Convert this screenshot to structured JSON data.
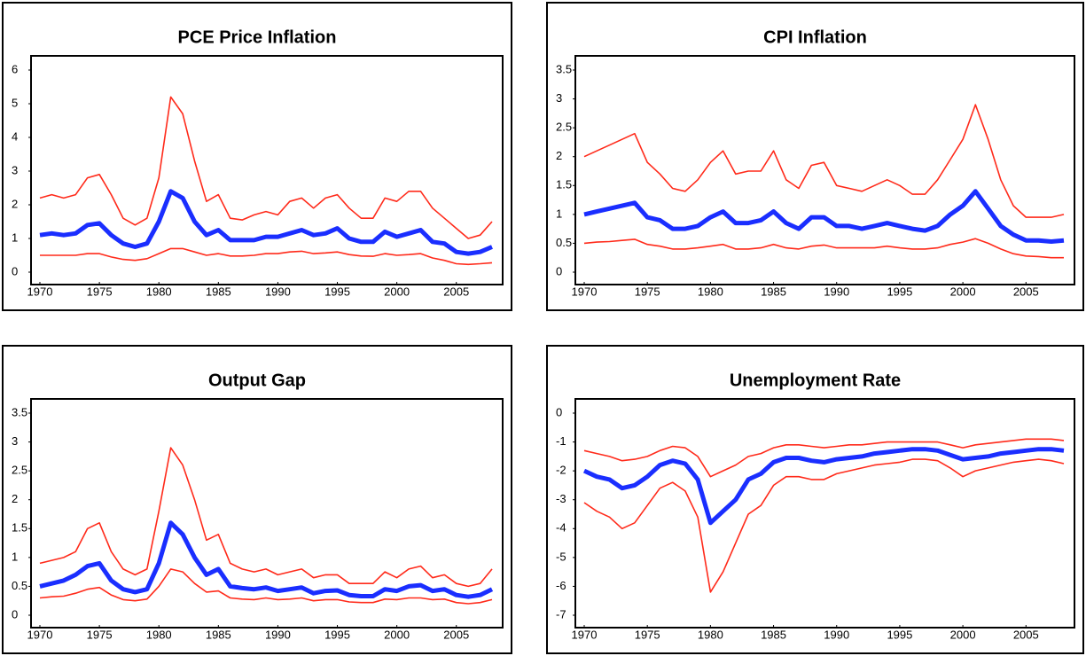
{
  "chart_data": [
    {
      "type": "line",
      "title": "PCE Price Inflation",
      "x": [
        1970,
        1971,
        1972,
        1973,
        1974,
        1975,
        1976,
        1977,
        1978,
        1979,
        1980,
        1981,
        1982,
        1983,
        1984,
        1985,
        1986,
        1987,
        1988,
        1989,
        1990,
        1991,
        1992,
        1993,
        1994,
        1995,
        1996,
        1997,
        1998,
        1999,
        2000,
        2001,
        2002,
        2003,
        2004,
        2005,
        2006,
        2007,
        2008
      ],
      "xlim": [
        1970,
        2008
      ],
      "xticks": [
        1970,
        1975,
        1980,
        1985,
        1990,
        1995,
        2000,
        2005
      ],
      "ylim": [
        0,
        6
      ],
      "yticks": [
        0,
        1,
        2,
        3,
        4,
        5,
        6
      ],
      "series": [
        {
          "color": "#ff2a1a",
          "values": [
            2.2,
            2.3,
            2.2,
            2.3,
            2.8,
            2.9,
            2.3,
            1.6,
            1.4,
            1.6,
            2.8,
            5.2,
            4.7,
            3.3,
            2.1,
            2.3,
            1.6,
            1.55,
            1.7,
            1.8,
            1.7,
            2.1,
            2.2,
            1.9,
            2.2,
            2.3,
            1.9,
            1.6,
            1.6,
            2.2,
            2.1,
            2.4,
            2.4,
            1.9,
            1.6,
            1.3,
            1.0,
            1.1,
            1.5
          ]
        },
        {
          "color": "#1a2eff",
          "values": [
            1.1,
            1.15,
            1.1,
            1.15,
            1.4,
            1.45,
            1.1,
            0.85,
            0.75,
            0.85,
            1.5,
            2.4,
            2.2,
            1.5,
            1.1,
            1.25,
            0.95,
            0.95,
            0.95,
            1.05,
            1.05,
            1.15,
            1.25,
            1.1,
            1.15,
            1.3,
            1.0,
            0.9,
            0.9,
            1.2,
            1.05,
            1.15,
            1.25,
            0.9,
            0.85,
            0.6,
            0.55,
            0.6,
            0.75
          ]
        },
        {
          "color": "#ff2a1a",
          "values": [
            0.5,
            0.5,
            0.5,
            0.5,
            0.55,
            0.55,
            0.45,
            0.38,
            0.35,
            0.4,
            0.55,
            0.7,
            0.7,
            0.6,
            0.5,
            0.55,
            0.48,
            0.48,
            0.5,
            0.55,
            0.55,
            0.6,
            0.62,
            0.55,
            0.57,
            0.6,
            0.52,
            0.48,
            0.47,
            0.55,
            0.5,
            0.52,
            0.55,
            0.42,
            0.35,
            0.25,
            0.23,
            0.25,
            0.28
          ]
        }
      ]
    },
    {
      "type": "line",
      "title": "CPI Inflation",
      "x": [
        1970,
        1971,
        1972,
        1973,
        1974,
        1975,
        1976,
        1977,
        1978,
        1979,
        1980,
        1981,
        1982,
        1983,
        1984,
        1985,
        1986,
        1987,
        1988,
        1989,
        1990,
        1991,
        1992,
        1993,
        1994,
        1995,
        1996,
        1997,
        1998,
        1999,
        2000,
        2001,
        2002,
        2003,
        2004,
        2005,
        2006,
        2007,
        2008
      ],
      "xlim": [
        1970,
        2008
      ],
      "xticks": [
        1970,
        1975,
        1980,
        1985,
        1990,
        1995,
        2000,
        2005
      ],
      "ylim": [
        0,
        3.5
      ],
      "yticks": [
        0,
        0.5,
        1,
        1.5,
        2,
        2.5,
        3,
        3.5
      ],
      "series": [
        {
          "color": "#ff2a1a",
          "values": [
            2.0,
            2.1,
            2.2,
            2.3,
            2.4,
            1.9,
            1.7,
            1.45,
            1.4,
            1.6,
            1.9,
            2.1,
            1.7,
            1.75,
            1.75,
            2.1,
            1.6,
            1.45,
            1.85,
            1.9,
            1.5,
            1.45,
            1.4,
            1.5,
            1.6,
            1.5,
            1.35,
            1.35,
            1.6,
            1.95,
            2.3,
            2.9,
            2.3,
            1.6,
            1.15,
            0.95,
            0.95,
            0.95,
            1.0
          ]
        },
        {
          "color": "#1a2eff",
          "values": [
            1.0,
            1.05,
            1.1,
            1.15,
            1.2,
            0.95,
            0.9,
            0.75,
            0.75,
            0.8,
            0.95,
            1.05,
            0.85,
            0.85,
            0.9,
            1.05,
            0.85,
            0.75,
            0.95,
            0.95,
            0.8,
            0.8,
            0.75,
            0.8,
            0.85,
            0.8,
            0.75,
            0.72,
            0.8,
            1.0,
            1.15,
            1.4,
            1.1,
            0.8,
            0.65,
            0.55,
            0.55,
            0.53,
            0.55
          ]
        },
        {
          "color": "#ff2a1a",
          "values": [
            0.5,
            0.52,
            0.53,
            0.55,
            0.57,
            0.48,
            0.45,
            0.4,
            0.4,
            0.42,
            0.45,
            0.48,
            0.4,
            0.4,
            0.42,
            0.48,
            0.42,
            0.4,
            0.45,
            0.47,
            0.42,
            0.42,
            0.42,
            0.42,
            0.45,
            0.42,
            0.4,
            0.4,
            0.42,
            0.48,
            0.52,
            0.58,
            0.5,
            0.4,
            0.32,
            0.28,
            0.27,
            0.25,
            0.25
          ]
        }
      ]
    },
    {
      "type": "line",
      "title": "Output Gap",
      "x": [
        1970,
        1971,
        1972,
        1973,
        1974,
        1975,
        1976,
        1977,
        1978,
        1979,
        1980,
        1981,
        1982,
        1983,
        1984,
        1985,
        1986,
        1987,
        1988,
        1989,
        1990,
        1991,
        1992,
        1993,
        1994,
        1995,
        1996,
        1997,
        1998,
        1999,
        2000,
        2001,
        2002,
        2003,
        2004,
        2005,
        2006,
        2007,
        2008
      ],
      "xlim": [
        1970,
        2008
      ],
      "xticks": [
        1970,
        1975,
        1980,
        1985,
        1990,
        1995,
        2000,
        2005
      ],
      "ylim": [
        0,
        3.5
      ],
      "yticks": [
        0,
        0.5,
        1,
        1.5,
        2,
        2.5,
        3,
        3.5
      ],
      "series": [
        {
          "color": "#ff2a1a",
          "values": [
            0.9,
            0.95,
            1.0,
            1.1,
            1.5,
            1.6,
            1.1,
            0.8,
            0.7,
            0.8,
            1.8,
            2.9,
            2.6,
            2.0,
            1.3,
            1.4,
            0.9,
            0.8,
            0.75,
            0.8,
            0.7,
            0.75,
            0.8,
            0.65,
            0.7,
            0.7,
            0.55,
            0.55,
            0.55,
            0.75,
            0.65,
            0.8,
            0.85,
            0.65,
            0.7,
            0.55,
            0.5,
            0.55,
            0.8
          ]
        },
        {
          "color": "#1a2eff",
          "values": [
            0.5,
            0.55,
            0.6,
            0.7,
            0.85,
            0.9,
            0.6,
            0.45,
            0.4,
            0.45,
            0.9,
            1.6,
            1.4,
            1.0,
            0.7,
            0.8,
            0.5,
            0.47,
            0.45,
            0.48,
            0.42,
            0.45,
            0.48,
            0.38,
            0.42,
            0.43,
            0.35,
            0.33,
            0.33,
            0.45,
            0.42,
            0.5,
            0.52,
            0.42,
            0.45,
            0.35,
            0.32,
            0.35,
            0.45
          ]
        },
        {
          "color": "#ff2a1a",
          "values": [
            0.3,
            0.32,
            0.33,
            0.38,
            0.45,
            0.48,
            0.35,
            0.27,
            0.25,
            0.28,
            0.5,
            0.8,
            0.75,
            0.55,
            0.4,
            0.42,
            0.3,
            0.28,
            0.27,
            0.3,
            0.27,
            0.28,
            0.3,
            0.25,
            0.27,
            0.27,
            0.23,
            0.22,
            0.22,
            0.28,
            0.27,
            0.3,
            0.3,
            0.27,
            0.28,
            0.22,
            0.2,
            0.22,
            0.27
          ]
        }
      ]
    },
    {
      "type": "line",
      "title": "Unemployment Rate",
      "x": [
        1970,
        1971,
        1972,
        1973,
        1974,
        1975,
        1976,
        1977,
        1978,
        1979,
        1980,
        1981,
        1982,
        1983,
        1984,
        1985,
        1986,
        1987,
        1988,
        1989,
        1990,
        1991,
        1992,
        1993,
        1994,
        1995,
        1996,
        1997,
        1998,
        1999,
        2000,
        2001,
        2002,
        2003,
        2004,
        2005,
        2006,
        2007,
        2008
      ],
      "xlim": [
        1970,
        2008
      ],
      "xticks": [
        1970,
        1975,
        1980,
        1985,
        1990,
        1995,
        2000,
        2005
      ],
      "ylim": [
        -7,
        0
      ],
      "yticks": [
        -7,
        -6,
        -5,
        -4,
        -3,
        -2,
        -1,
        0
      ],
      "series": [
        {
          "color": "#ff2a1a",
          "values": [
            -1.3,
            -1.4,
            -1.5,
            -1.65,
            -1.6,
            -1.5,
            -1.3,
            -1.15,
            -1.2,
            -1.5,
            -2.2,
            -2.0,
            -1.8,
            -1.5,
            -1.4,
            -1.2,
            -1.1,
            -1.1,
            -1.15,
            -1.2,
            -1.15,
            -1.1,
            -1.1,
            -1.05,
            -1.0,
            -1.0,
            -1.0,
            -1.0,
            -1.0,
            -1.1,
            -1.2,
            -1.1,
            -1.05,
            -1.0,
            -0.95,
            -0.9,
            -0.9,
            -0.9,
            -0.95
          ]
        },
        {
          "color": "#1a2eff",
          "values": [
            -2.0,
            -2.2,
            -2.3,
            -2.6,
            -2.5,
            -2.2,
            -1.8,
            -1.65,
            -1.75,
            -2.3,
            -3.8,
            -3.4,
            -3.0,
            -2.3,
            -2.1,
            -1.7,
            -1.55,
            -1.55,
            -1.65,
            -1.7,
            -1.6,
            -1.55,
            -1.5,
            -1.4,
            -1.35,
            -1.3,
            -1.25,
            -1.25,
            -1.3,
            -1.45,
            -1.6,
            -1.55,
            -1.5,
            -1.4,
            -1.35,
            -1.3,
            -1.25,
            -1.25,
            -1.3
          ]
        },
        {
          "color": "#ff2a1a",
          "values": [
            -3.1,
            -3.4,
            -3.6,
            -4.0,
            -3.8,
            -3.2,
            -2.6,
            -2.4,
            -2.7,
            -3.6,
            -6.2,
            -5.5,
            -4.5,
            -3.5,
            -3.2,
            -2.5,
            -2.2,
            -2.2,
            -2.3,
            -2.3,
            -2.1,
            -2.0,
            -1.9,
            -1.8,
            -1.75,
            -1.7,
            -1.6,
            -1.6,
            -1.65,
            -1.9,
            -2.2,
            -2.0,
            -1.9,
            -1.8,
            -1.7,
            -1.65,
            -1.6,
            -1.65,
            -1.75
          ]
        }
      ]
    }
  ]
}
